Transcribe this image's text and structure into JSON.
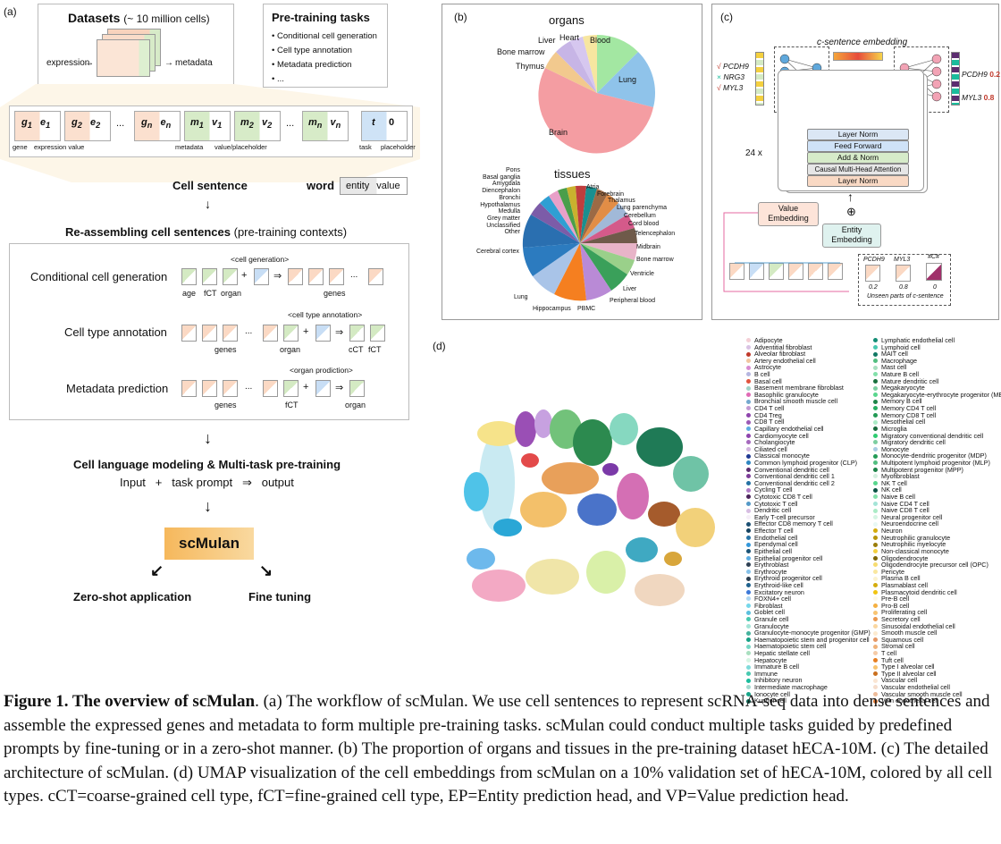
{
  "panel_a": {
    "label": "(a)",
    "datasets_title": "Datasets",
    "datasets_sub": "(~ 10 million cells)",
    "expression": "expression",
    "metadata": "metadata",
    "pretraining_title": "Pre-training tasks",
    "pretraining_items": [
      "Conditional cell generation",
      "Cell type annotation",
      "Metadata prediction",
      "..."
    ],
    "tokens": [
      {
        "a": "g",
        "as": "1",
        "b": "e",
        "bs": "1"
      },
      {
        "a": "g",
        "as": "2",
        "b": "e",
        "bs": "2"
      },
      {
        "a": "g",
        "as": "n",
        "b": "e",
        "bs": "n"
      },
      {
        "a": "m",
        "as": "1",
        "b": "v",
        "bs": "1"
      },
      {
        "a": "m",
        "as": "2",
        "b": "v",
        "bs": "2"
      },
      {
        "a": "m",
        "as": "n",
        "b": "v",
        "bs": "n"
      },
      {
        "a": "t",
        "as": "",
        "b": "0",
        "bs": ""
      }
    ],
    "ellipsis": "...",
    "tok_labels": {
      "gene": "gene",
      "expression_value": "expression value",
      "metadata": "metadata",
      "value_placeholder": "value/placeholder",
      "task": "task",
      "placeholder": "placeholder"
    },
    "cell_sentence": "Cell sentence",
    "word": "word",
    "word_entity": "entity",
    "word_value": "value",
    "reassembling": "Re-assembling cell sentences",
    "reassembling_sub": "(pre-training contexts)",
    "tasks": [
      {
        "name": "Conditional cell generation",
        "prompt": "<cell generation>",
        "labels": [
          "age",
          "fCT",
          "organ",
          "genes"
        ]
      },
      {
        "name": "Cell type annotation",
        "prompt": "<cell type annotation>",
        "labels": [
          "genes",
          "organ",
          "cCT",
          "fCT"
        ]
      },
      {
        "name": "Metadata prediction",
        "prompt": "<organ prodiction>",
        "labels": [
          "genes",
          "fCT",
          "organ"
        ]
      }
    ],
    "plus": "+",
    "arrow": "⇒",
    "modeling": "Cell language modeling & Multi-task pre-training",
    "io_input": "Input",
    "io_task": "task prompt",
    "io_output": "output",
    "model_name": "scMulan",
    "zero_shot": "Zero-shot application",
    "fine_tuning": "Fine tuning"
  },
  "panel_b": {
    "label": "(b)",
    "organs_title": "organs",
    "tissues_title": "tissues",
    "organ_labels": [
      "Liver",
      "Heart",
      "Blood",
      "Bone marrow",
      "Thymus",
      "Lung",
      "Brain"
    ],
    "tissue_left_labels": [
      "Pons",
      "Basal ganglia",
      "Amygdala",
      "Diencephalon",
      "Bronchi",
      "Hypothalamus",
      "Medulla",
      "Grey matter",
      "Unclassified",
      "Other"
    ],
    "tissue_right_labels": [
      "Atria",
      "Forebrain",
      "Thalamus",
      "Lung parenchyma",
      "Cerebellum",
      "Cord blood",
      "Telencephalon",
      "Midbrain",
      "Bone marrow",
      "Ventricle",
      "Liver",
      "Peripheral blood",
      "PBMC",
      "Hippocampus",
      "Lung",
      "Cerebral cortex"
    ]
  },
  "panel_c": {
    "label": "(c)",
    "c_sentence": "c-sentence embedding",
    "ep": "EP",
    "vp": "VP",
    "genes_in": [
      {
        "mark": "√",
        "name": "PCDH9"
      },
      {
        "mark": "×",
        "name": "NRG3"
      },
      {
        "mark": "√",
        "name": "MYL3"
      }
    ],
    "genes_out": [
      {
        "name": "PCDH9",
        "val": "0.2"
      },
      {
        "name": "MYL3",
        "val": "0.8"
      }
    ],
    "layers": [
      "Layer Norm",
      "Feed Forward",
      "Add & Norm",
      "Causal Multi-Head Attention",
      "Layer Norm"
    ],
    "times": "24 x",
    "value_embedding": "Value Embedding",
    "entity_embedding": "Entity Embedding",
    "oplus": "⊕",
    "unseen_genes": [
      "PCDH9",
      "MYL3",
      "#C#"
    ],
    "unseen_vals": [
      "0.2",
      "0.8",
      "0"
    ],
    "unseen_caption": "Unseen parts of c-sentence"
  },
  "panel_d": {
    "label": "(d)",
    "legend_col1": [
      {
        "n": "Adipocyte",
        "c": "#f4cfd6"
      },
      {
        "n": "Adventitial fibroblast",
        "c": "#d9c2e4"
      },
      {
        "n": "Alveolar fibroblast",
        "c": "#c0392b"
      },
      {
        "n": "Artery endothelial cell",
        "c": "#f2c6a0"
      },
      {
        "n": "Astrocyte",
        "c": "#d98cd1"
      },
      {
        "n": "B cell",
        "c": "#b6b6e0"
      },
      {
        "n": "Basal cell",
        "c": "#e2543e"
      },
      {
        "n": "Basement membrane fibroblast",
        "c": "#9fd3c7"
      },
      {
        "n": "Basophilic granulocyte",
        "c": "#e06ab5"
      },
      {
        "n": "Bronchial smooth muscle cell",
        "c": "#74a9cf"
      },
      {
        "n": "CD4 T cell",
        "c": "#c39bd3"
      },
      {
        "n": "CD4 Treg",
        "c": "#8e44ad"
      },
      {
        "n": "CD8 T cell",
        "c": "#9b59b6"
      },
      {
        "n": "Capillary endothelial cell",
        "c": "#5dade2"
      },
      {
        "n": "Cardiomyocyte cell",
        "c": "#8e44ad"
      },
      {
        "n": "Cholangiocyte",
        "c": "#a569bd"
      },
      {
        "n": "Ciliated cell",
        "c": "#d2b4de"
      },
      {
        "n": "Classical monocyte",
        "c": "#1f3a93"
      },
      {
        "n": "Common lymphoid progenitor (CLP)",
        "c": "#2e86c1"
      },
      {
        "n": "Conventional dendritic cell",
        "c": "#5b2c6f"
      },
      {
        "n": "Conventional dendritic cell 1",
        "c": "#7d3c98"
      },
      {
        "n": "Conventional dendritic cell 2",
        "c": "#2471a3"
      },
      {
        "n": "Cycling T cell",
        "c": "#af7ac5"
      },
      {
        "n": "Cytotoxic CD8 T cell",
        "c": "#4a235a"
      },
      {
        "n": "Cytotoxic T cell",
        "c": "#5499c7"
      },
      {
        "n": "Dendritic cell",
        "c": "#d7bde2"
      },
      {
        "n": "Early T-cell precursor",
        "c": "#f5eef8"
      },
      {
        "n": "Effector CD8 memory T cell",
        "c": "#1b4f72"
      },
      {
        "n": "Effector T cell",
        "c": "#154360"
      },
      {
        "n": "Endothelial cell",
        "c": "#2874a6"
      },
      {
        "n": "Ependymal cell",
        "c": "#3498db"
      },
      {
        "n": "Epithelial cell",
        "c": "#1a5276"
      },
      {
        "n": "Epithelial progenitor cell",
        "c": "#5dade2"
      },
      {
        "n": "Erythroblast",
        "c": "#2e4053"
      },
      {
        "n": "Erythrocyte",
        "c": "#85c1e9"
      },
      {
        "n": "Erythroid progenitor cell",
        "c": "#2c3e50"
      },
      {
        "n": "Erythroid-like cell",
        "c": "#1f618d"
      },
      {
        "n": "Excitatory neuron",
        "c": "#3c78d8"
      },
      {
        "n": "FOXN4+ cell",
        "c": "#aed6f1"
      },
      {
        "n": "Fibroblast",
        "c": "#76d7ea"
      },
      {
        "n": "Goblet cell",
        "c": "#5bc0de"
      },
      {
        "n": "Granule cell",
        "c": "#48c9b0"
      },
      {
        "n": "Granulocyte",
        "c": "#a3e4d7"
      },
      {
        "n": "Granulocyte-monocyte progenitor (GMP)",
        "c": "#45b39d"
      },
      {
        "n": "Haematopoietic stem and progenitor cell",
        "c": "#16a085"
      },
      {
        "n": "Haematopoietic stem cell",
        "c": "#76d7c4"
      },
      {
        "n": "Hepatic stellate cell",
        "c": "#a9dfbf"
      },
      {
        "n": "Hepatocyte",
        "c": "#d5f5e3"
      },
      {
        "n": "Immature B cell",
        "c": "#7fdbda"
      },
      {
        "n": "Immune",
        "c": "#48c9b0"
      },
      {
        "n": "Inhibitory neuron",
        "c": "#1abc9c"
      },
      {
        "n": "Intermediate macrophage",
        "c": "#a2d9ce"
      },
      {
        "n": "Ionocyte cell",
        "c": "#17a589"
      },
      {
        "n": "Kupffer cell",
        "c": "#0e6655"
      }
    ],
    "legend_col2": [
      {
        "n": "Lymphatic endothelial cell",
        "c": "#138d75"
      },
      {
        "n": "Lymphoid cell",
        "c": "#48c9b0"
      },
      {
        "n": "MAIT cell",
        "c": "#117864"
      },
      {
        "n": "Macrophage",
        "c": "#52be80"
      },
      {
        "n": "Mast cell",
        "c": "#a9dfbf"
      },
      {
        "n": "Mature B cell",
        "c": "#82e0aa"
      },
      {
        "n": "Mature dendritic cell",
        "c": "#196f3d"
      },
      {
        "n": "Megakaryocyte",
        "c": "#7dcea0"
      },
      {
        "n": "Megakaryocyte-erythrocyte progenitor (MEP)",
        "c": "#58d68d"
      },
      {
        "n": "Memory B cell",
        "c": "#1e8449"
      },
      {
        "n": "Memory CD4 T cell",
        "c": "#27ae60"
      },
      {
        "n": "Memory CD8 T cell",
        "c": "#229954"
      },
      {
        "n": "Mesothelial cell",
        "c": "#abebc6"
      },
      {
        "n": "Microglia",
        "c": "#186a3b"
      },
      {
        "n": "Migratory conventional dendritic cell",
        "c": "#2ecc71"
      },
      {
        "n": "Migratory dendritic cell",
        "c": "#7dcea0"
      },
      {
        "n": "Monocyte",
        "c": "#a9cce3"
      },
      {
        "n": "Monocyte-dendritic progenitor (MDP)",
        "c": "#239b56"
      },
      {
        "n": "Multipotent lymphoid progenitor (MLP)",
        "c": "#52be80"
      },
      {
        "n": "Multipotent progenitor (MPP)",
        "c": "#1d8348"
      },
      {
        "n": "Myofibroblast",
        "c": "#d4efdf"
      },
      {
        "n": "NK T cell",
        "c": "#58d68d"
      },
      {
        "n": "NK cell",
        "c": "#0b5345"
      },
      {
        "n": "Naive B cell",
        "c": "#82e0aa"
      },
      {
        "n": "Naive CD4 T cell",
        "c": "#a3e4d7"
      },
      {
        "n": "Naive CD8 T cell",
        "c": "#abebc6"
      },
      {
        "n": "Neural progenitor cell",
        "c": "#d5f5e3"
      },
      {
        "n": "Neuroendocrine cell",
        "c": "#e8f8f5"
      },
      {
        "n": "Neuron",
        "c": "#d4ac0d"
      },
      {
        "n": "Neutrophilic granulocyte",
        "c": "#b7950b"
      },
      {
        "n": "Neutrophilic myelocyte",
        "c": "#9a7d0a"
      },
      {
        "n": "Non-classical monocyte",
        "c": "#f4d03f"
      },
      {
        "n": "Oligodendrocyte",
        "c": "#7d6608"
      },
      {
        "n": "Oligodendrocyte precursor cell (OPC)",
        "c": "#f7dc6f"
      },
      {
        "n": "Pericyte",
        "c": "#f9e79f"
      },
      {
        "n": "Plasma B cell",
        "c": "#fcf3cf"
      },
      {
        "n": "Plasmablast cell",
        "c": "#d4ac0d"
      },
      {
        "n": "Plasmacytoid dendritic cell",
        "c": "#f1c40f"
      },
      {
        "n": "Pre-B cell",
        "c": "#fef9e7"
      },
      {
        "n": "Pro-B cell",
        "c": "#f5b041"
      },
      {
        "n": "Proliferating cell",
        "c": "#f8c471"
      },
      {
        "n": "Secretory cell",
        "c": "#eb984e"
      },
      {
        "n": "Sinusoidal endothelial cell",
        "c": "#fad7a0"
      },
      {
        "n": "Smooth muscle cell",
        "c": "#fdebd0"
      },
      {
        "n": "Squamous cell",
        "c": "#e59866"
      },
      {
        "n": "Stromal cell",
        "c": "#f0b27a"
      },
      {
        "n": "T cell",
        "c": "#f5cba7"
      },
      {
        "n": "Tuft cell",
        "c": "#e67e22"
      },
      {
        "n": "Type I alveolar cell",
        "c": "#f8c471"
      },
      {
        "n": "Type II alveolar cell",
        "c": "#ca6f1e"
      },
      {
        "n": "Vascular cell",
        "c": "#fae5d3"
      },
      {
        "n": "Vascular endothelial cell",
        "c": "#f6ddcc"
      },
      {
        "n": "Vascular smooth muscle cell",
        "c": "#edbb99"
      },
      {
        "n": "Vein endothelial cell",
        "c": "#dc7633"
      }
    ]
  },
  "caption": {
    "figure_label": "Figure 1. The overview of scMulan",
    "text": ". (a) The workflow of scMulan. We use cell sentences to represent scRNA-seq data into dense sentences and assemble the expressed genes and metadata to form multiple pre-training tasks. scMulan could conduct multiple tasks guided by predefined prompts by fine-tuning or in a zero-shot manner. (b) The proportion of organs and tissues in the pre-training dataset hECA-10M. (c) The detailed architecture of scMulan. (d) UMAP visualization of the cell embeddings from scMulan on a 10% validation set of hECA-10M, colored by all cell types. cCT=coarse-grained cell type, fCT=fine-grained cell type, EP=Entity prediction head, and VP=Value prediction head."
  }
}
